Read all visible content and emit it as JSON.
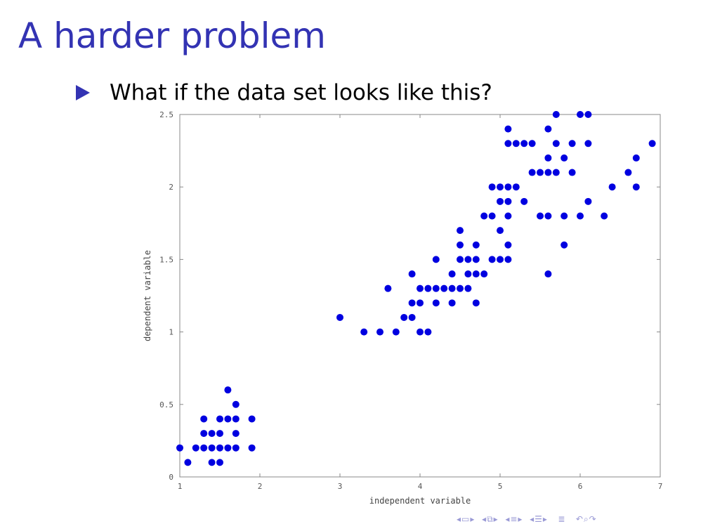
{
  "slide": {
    "title": "A harder problem",
    "bullet": "What if the data set looks like this?"
  },
  "colors": {
    "title": "#3333b3",
    "points": "#0000e0",
    "axis": "#888888"
  },
  "chart_data": {
    "type": "scatter",
    "title": "",
    "xlabel": "independent variable",
    "ylabel": "dependent variable",
    "xlim": [
      1,
      7
    ],
    "ylim": [
      0,
      2.5
    ],
    "xticks": [
      "1",
      "2",
      "3",
      "4",
      "5",
      "6",
      "7"
    ],
    "yticks": [
      "0",
      "0.5",
      "1",
      "1.5",
      "2",
      "2.5"
    ],
    "grid": false,
    "legend": "none",
    "series": [
      {
        "points": [
          [
            1.1,
            0.1
          ],
          [
            1.4,
            0.1
          ],
          [
            1.5,
            0.1
          ],
          [
            1.0,
            0.2
          ],
          [
            1.2,
            0.2
          ],
          [
            1.3,
            0.2
          ],
          [
            1.4,
            0.2
          ],
          [
            1.5,
            0.2
          ],
          [
            1.6,
            0.2
          ],
          [
            1.7,
            0.2
          ],
          [
            1.9,
            0.2
          ],
          [
            1.3,
            0.3
          ],
          [
            1.4,
            0.3
          ],
          [
            1.5,
            0.3
          ],
          [
            1.7,
            0.3
          ],
          [
            1.3,
            0.4
          ],
          [
            1.5,
            0.4
          ],
          [
            1.6,
            0.4
          ],
          [
            1.7,
            0.4
          ],
          [
            1.9,
            0.4
          ],
          [
            1.7,
            0.5
          ],
          [
            1.6,
            0.6
          ],
          [
            3.3,
            1.0
          ],
          [
            3.5,
            1.0
          ],
          [
            3.7,
            1.0
          ],
          [
            4.0,
            1.0
          ],
          [
            4.1,
            1.0
          ],
          [
            3.0,
            1.1
          ],
          [
            3.8,
            1.1
          ],
          [
            3.9,
            1.1
          ],
          [
            3.9,
            1.2
          ],
          [
            4.0,
            1.2
          ],
          [
            4.2,
            1.2
          ],
          [
            4.4,
            1.2
          ],
          [
            4.7,
            1.2
          ],
          [
            3.6,
            1.3
          ],
          [
            4.0,
            1.3
          ],
          [
            4.1,
            1.3
          ],
          [
            4.2,
            1.3
          ],
          [
            4.3,
            1.3
          ],
          [
            4.4,
            1.3
          ],
          [
            4.5,
            1.3
          ],
          [
            4.6,
            1.3
          ],
          [
            3.9,
            1.4
          ],
          [
            4.4,
            1.4
          ],
          [
            4.6,
            1.4
          ],
          [
            4.7,
            1.4
          ],
          [
            4.8,
            1.4
          ],
          [
            5.6,
            1.4
          ],
          [
            4.2,
            1.5
          ],
          [
            4.5,
            1.5
          ],
          [
            4.6,
            1.5
          ],
          [
            4.7,
            1.5
          ],
          [
            4.9,
            1.5
          ],
          [
            5.0,
            1.5
          ],
          [
            5.1,
            1.5
          ],
          [
            4.5,
            1.6
          ],
          [
            4.7,
            1.6
          ],
          [
            5.1,
            1.6
          ],
          [
            5.8,
            1.6
          ],
          [
            4.5,
            1.7
          ],
          [
            5.0,
            1.7
          ],
          [
            4.8,
            1.8
          ],
          [
            4.9,
            1.8
          ],
          [
            5.1,
            1.8
          ],
          [
            5.5,
            1.8
          ],
          [
            5.6,
            1.8
          ],
          [
            5.8,
            1.8
          ],
          [
            6.0,
            1.8
          ],
          [
            6.3,
            1.8
          ],
          [
            5.0,
            1.9
          ],
          [
            5.1,
            1.9
          ],
          [
            5.3,
            1.9
          ],
          [
            6.1,
            1.9
          ],
          [
            4.9,
            2.0
          ],
          [
            5.0,
            2.0
          ],
          [
            5.1,
            2.0
          ],
          [
            5.2,
            2.0
          ],
          [
            6.4,
            2.0
          ],
          [
            6.7,
            2.0
          ],
          [
            5.4,
            2.1
          ],
          [
            5.5,
            2.1
          ],
          [
            5.6,
            2.1
          ],
          [
            5.7,
            2.1
          ],
          [
            5.9,
            2.1
          ],
          [
            6.6,
            2.1
          ],
          [
            5.6,
            2.2
          ],
          [
            5.8,
            2.2
          ],
          [
            6.7,
            2.2
          ],
          [
            5.1,
            2.3
          ],
          [
            5.2,
            2.3
          ],
          [
            5.3,
            2.3
          ],
          [
            5.4,
            2.3
          ],
          [
            5.7,
            2.3
          ],
          [
            5.9,
            2.3
          ],
          [
            6.1,
            2.3
          ],
          [
            6.9,
            2.3
          ],
          [
            5.1,
            2.4
          ],
          [
            5.6,
            2.4
          ],
          [
            5.7,
            2.5
          ],
          [
            6.0,
            2.5
          ],
          [
            6.1,
            2.5
          ]
        ]
      }
    ]
  }
}
